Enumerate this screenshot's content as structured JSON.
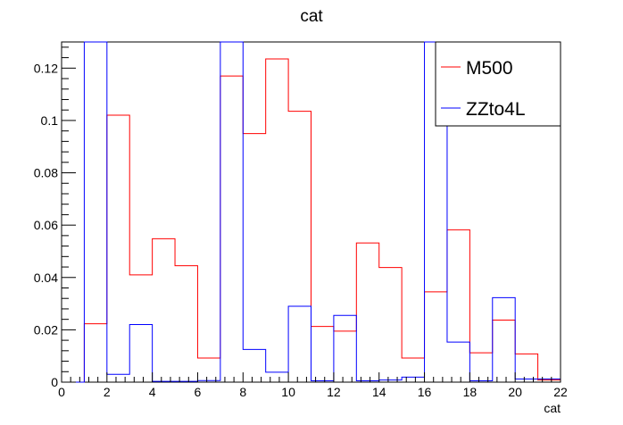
{
  "chart_data": {
    "type": "step-histogram",
    "title": "cat",
    "xlabel": "cat",
    "ylabel": "",
    "xlim": [
      0,
      22
    ],
    "ylim": [
      0,
      0.13
    ],
    "x_ticks": [
      0,
      2,
      4,
      6,
      8,
      10,
      12,
      14,
      16,
      18,
      20,
      22
    ],
    "y_ticks": [
      0,
      0.02,
      0.04,
      0.06,
      0.08,
      0.1,
      0.12
    ],
    "y_tick_labels": [
      "0",
      "0.02",
      "0.04",
      "0.06",
      "0.08",
      "0.1",
      "0.12"
    ],
    "bin_edges": [
      0,
      1,
      2,
      3,
      4,
      5,
      6,
      7,
      8,
      9,
      10,
      11,
      12,
      13,
      14,
      15,
      16,
      17,
      18,
      19,
      20,
      21,
      22
    ],
    "grid": false,
    "legend_position": "top-right",
    "series": [
      {
        "name": "M500",
        "color": "#ff0000",
        "values": [
          0,
          0.0223,
          0.102,
          0.041,
          0.0548,
          0.0445,
          0.0092,
          0.117,
          0.095,
          0.1235,
          0.1035,
          0.0213,
          0.0195,
          0.0532,
          0.0438,
          0.0092,
          0.0345,
          0.0582,
          0.0112,
          0.0237,
          0.0108,
          0.0008
        ]
      },
      {
        "name": "ZZto4L",
        "color": "#0000ff",
        "values": [
          0,
          0.15,
          0.003,
          0.022,
          0.0003,
          0.0003,
          0.0006,
          0.2,
          0.0125,
          0.0038,
          0.029,
          0.0005,
          0.0255,
          0.0005,
          0.0008,
          0.0019,
          0.15,
          0.0153,
          0.0005,
          0.0323,
          0.0012,
          0.0012
        ]
      }
    ]
  }
}
